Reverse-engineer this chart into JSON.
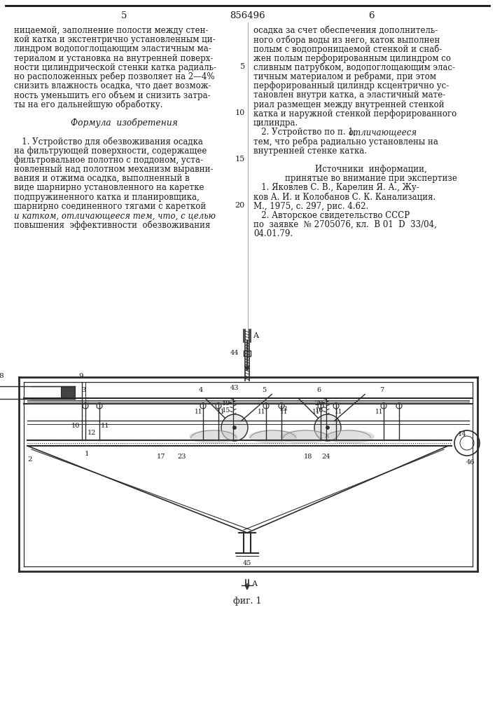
{
  "patent_number": "856496",
  "page_left": "5",
  "page_right": "6",
  "bg_color": "#ffffff",
  "text_color": "#1a1a1a",
  "line_color": "#2a2a2a",
  "fig_label": "фиг. 1",
  "left_column_lines": [
    "ницаемой, заполнение полости между стен-",
    "кой катка и экстентрично установленным ци-",
    "линдром водопоглощающим эластичным ма-",
    "териалом и установка на внутренней поверх-",
    "ности цилиндрической стенки катка радиаль-",
    "но расположенных ребер позволяет на 2—4%",
    "снизить влажность осадка, что дает возмож-",
    "ность уменьшить его объем и снизить затра-",
    "ты на его дальнейшую обработку.",
    "",
    "Формула  изобретения",
    "",
    "   1. Устройство для обезвоживания осадка",
    "на фильтрующей поверхности, содержащее",
    "фильтровальное полотно с поддоном, уста-",
    "новленный над полотном механизм выравни-",
    "вания и отжима осадка, выполненный в",
    "виде шарнирно установленного на каретке",
    "подпружиненного катка и планировщика,",
    "шарнирно соединенного тягами с кареткой",
    "и катком, отличающееся тем, что, с целью",
    "повышения  эффективности  обезвоживания"
  ],
  "right_column_lines": [
    "осадка за счет обеспечения дополнитель-",
    "ного отбора воды из него, каток выполнен",
    "полым с водопроницаемой стенкой и снаб-",
    "жен полым перфорированным цилиндром со",
    "сливным патрубком, водопоглощающим элас-",
    "тичным материалом и ребрами, при этом",
    "перфорированный цилиндр ксцентрично ус-",
    "тановлен внутри катка, а эластичный мате-",
    "риал размещен между внутренней стенкой",
    "катка и наружной стенкой перфорированного",
    "цилиндра.",
    "   2. Устройство по п. 1, отличающееся",
    "тем, что ребра радиально установлены на",
    "внутренней стенке катка.",
    "",
    "        Источники  информации,",
    "    принятые во внимание при экспертизе",
    "   1. Яковлев С. В., Карелин Я. А., Жу-",
    "ков А. И. и Колобанов С. К. Канализация.",
    "М., 1975, с. 297, рис. 4.62.",
    "   2. Авторское свидетельство СССР",
    "по  заявке  № 2705076, кл.  В 01  D  33/04,",
    "04.01.79."
  ]
}
